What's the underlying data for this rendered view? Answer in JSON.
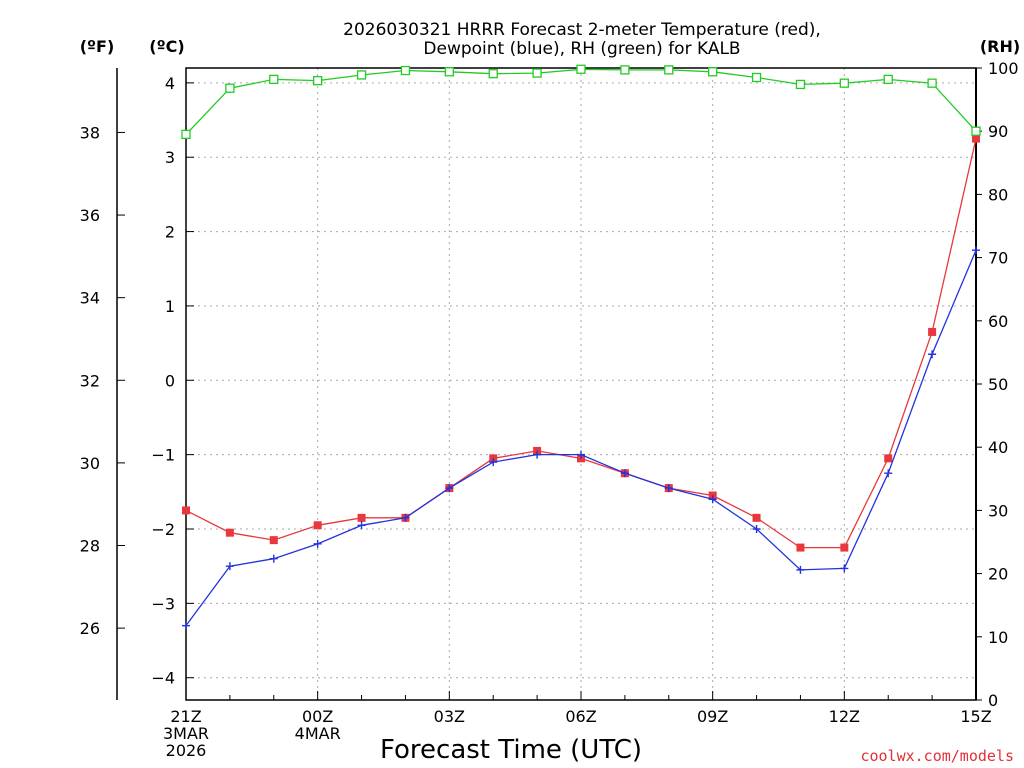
{
  "chart_data": {
    "type": "line",
    "title_line1": "2026030321 HRRR Forecast 2-meter Temperature (red),",
    "title_line2": "Dewpoint (blue), RH (green) for KALB",
    "xlabel": "Forecast Time (UTC)",
    "credit": "coolwx.com/models",
    "units": {
      "fahrenheit": "(ºF)",
      "celsius": "(ºC)",
      "rh": "(RH)"
    },
    "x_hours": [
      0,
      1,
      2,
      3,
      4,
      5,
      6,
      7,
      8,
      9,
      10,
      11,
      12,
      13,
      14,
      15,
      16,
      17,
      18
    ],
    "xlim": [
      0,
      18
    ],
    "celsius_axis": {
      "ylim": [
        -4.3,
        4.2
      ],
      "ticks": [
        "4",
        "3",
        "2",
        "1",
        "0",
        "-1",
        "-2",
        "-3",
        "-4"
      ]
    },
    "fahrenheit_axis": {
      "ticks": [
        "38",
        "36",
        "34",
        "32",
        "30",
        "28",
        "26"
      ]
    },
    "rh_axis": {
      "ylim": [
        0,
        100
      ],
      "ticks": [
        "100",
        "90",
        "80",
        "70",
        "60",
        "50",
        "40",
        "30",
        "20",
        "10",
        "0"
      ]
    },
    "x_ticks": [
      {
        "hour": 0,
        "lines": [
          "21Z",
          "3MAR",
          "2026"
        ]
      },
      {
        "hour": 3,
        "lines": [
          "00Z",
          "4MAR"
        ]
      },
      {
        "hour": 6,
        "lines": [
          "03Z"
        ]
      },
      {
        "hour": 9,
        "lines": [
          "06Z"
        ]
      },
      {
        "hour": 12,
        "lines": [
          "09Z"
        ]
      },
      {
        "hour": 15,
        "lines": [
          "12Z"
        ]
      },
      {
        "hour": 18,
        "lines": [
          "15Z"
        ]
      }
    ],
    "series": [
      {
        "name": "Temperature (°C)",
        "color": "#e8383d",
        "marker": "square",
        "values": [
          -1.75,
          -2.05,
          -2.15,
          -1.95,
          -1.85,
          -1.85,
          -1.45,
          -1.05,
          -0.95,
          -1.05,
          -1.25,
          -1.45,
          -1.55,
          -1.85,
          -2.25,
          -2.25,
          -1.05,
          0.65,
          3.25
        ]
      },
      {
        "name": "Dewpoint (°C)",
        "color": "#2233dd",
        "marker": "plus",
        "values": [
          -3.3,
          -2.5,
          -2.4,
          -2.2,
          -1.95,
          -1.85,
          -1.45,
          -1.1,
          -1.0,
          -1.0,
          -1.25,
          -1.45,
          -1.6,
          -2.0,
          -2.55,
          -2.53,
          -1.25,
          0.35,
          1.75
        ]
      },
      {
        "name": "RH (%)",
        "color": "#22cc22",
        "marker": "open-square",
        "values": [
          89.5,
          96.8,
          98.2,
          98.0,
          98.9,
          99.6,
          99.4,
          99.1,
          99.2,
          99.8,
          99.7,
          99.7,
          99.4,
          98.5,
          97.4,
          97.6,
          98.2,
          97.6,
          90.0
        ]
      }
    ]
  }
}
